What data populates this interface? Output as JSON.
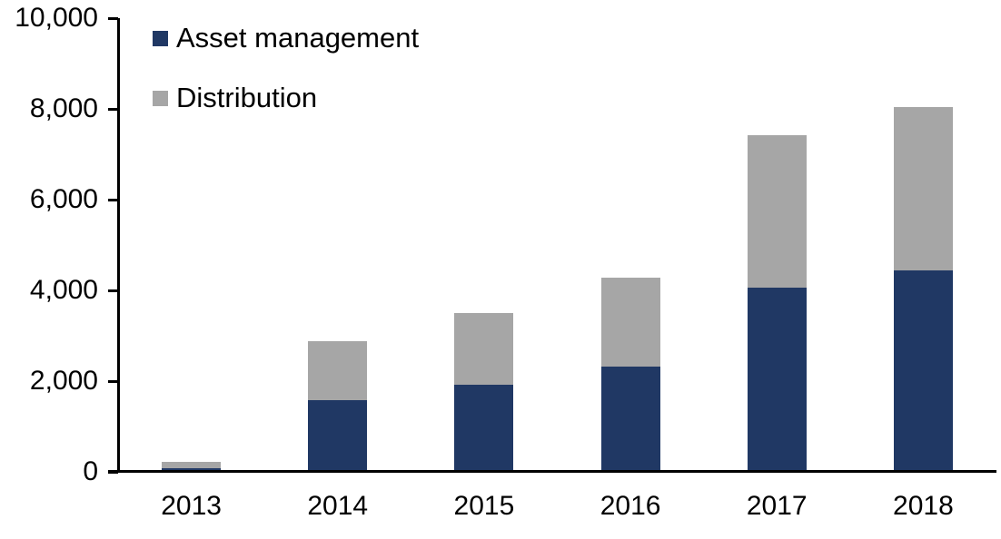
{
  "chart_data": {
    "type": "bar",
    "stacked": true,
    "title": "",
    "xlabel": "",
    "ylabel": "",
    "categories": [
      "2013",
      "2014",
      "2015",
      "2016",
      "2017",
      "2018"
    ],
    "series": [
      {
        "name": "Asset management",
        "color": "#203864",
        "values": [
          80,
          1580,
          1930,
          2330,
          4060,
          4440
        ]
      },
      {
        "name": "Distribution",
        "color": "#a6a6a6",
        "values": [
          140,
          1310,
          1580,
          1950,
          3370,
          3610
        ]
      }
    ],
    "totals": [
      220,
      2890,
      3510,
      4280,
      7430,
      8050
    ],
    "ylim": [
      0,
      10000
    ],
    "ytick_values": [
      0,
      2000,
      4000,
      6000,
      8000,
      10000
    ],
    "ytick_labels": [
      "0",
      "2,000",
      "4,000",
      "6,000",
      "8,000",
      "10,000"
    ],
    "grid": false,
    "legend_position": "top-left"
  },
  "colors": {
    "axis": "#000000",
    "text": "#000000",
    "background": "#ffffff",
    "asset_management": "#203864",
    "distribution": "#a6a6a6"
  }
}
